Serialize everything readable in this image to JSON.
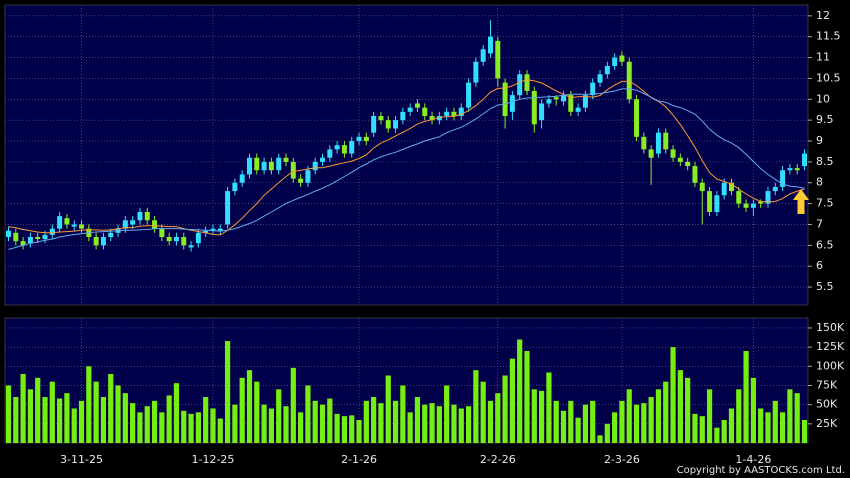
{
  "chart_data": [
    {
      "type": "candlestick",
      "up_color": "#33ddff",
      "down_color": "#88ee22",
      "ylim": [
        5.07,
        12.26
      ],
      "yticks": [
        5.5,
        6,
        6.5,
        7,
        7.5,
        8,
        8.5,
        9,
        9.5,
        10,
        10.5,
        11,
        11.5,
        12
      ],
      "grid": true,
      "open": [
        6.7,
        6.8,
        6.6,
        6.55,
        6.7,
        6.65,
        6.75,
        6.9,
        7.15,
        6.95,
        7.0,
        6.9,
        6.7,
        6.5,
        6.7,
        6.8,
        6.9,
        7.0,
        7.1,
        7.3,
        7.1,
        6.9,
        6.7,
        6.6,
        6.7,
        6.45,
        6.55,
        6.8,
        6.85,
        6.85,
        7.0,
        7.8,
        8.0,
        8.2,
        8.6,
        8.3,
        8.5,
        8.3,
        8.6,
        8.5,
        8.1,
        8.0,
        8.3,
        8.5,
        8.6,
        8.8,
        8.9,
        8.7,
        9.0,
        9.1,
        9.2,
        9.6,
        9.5,
        9.3,
        9.5,
        9.7,
        9.9,
        9.8,
        9.6,
        9.5,
        9.6,
        9.7,
        9.6,
        9.8,
        10.4,
        10.9,
        11.1,
        11.4,
        10.4,
        9.7,
        10.1,
        10.6,
        10.2,
        9.5,
        9.9,
        10.05,
        9.95,
        10.1,
        9.7,
        9.8,
        10.1,
        10.4,
        10.6,
        10.8,
        11.05,
        10.9,
        10.0,
        9.1,
        8.8,
        8.7,
        9.2,
        8.8,
        8.6,
        8.5,
        8.4,
        8.0,
        7.8,
        7.3,
        7.7,
        8.0,
        7.8,
        7.5,
        7.4,
        7.55,
        7.5,
        7.8,
        7.9,
        8.3,
        8.35,
        8.4
      ],
      "high": [
        6.95,
        6.9,
        6.7,
        6.8,
        6.8,
        6.85,
        7.0,
        7.3,
        7.25,
        7.1,
        7.1,
        7.0,
        6.8,
        6.8,
        6.9,
        7.0,
        7.2,
        7.2,
        7.4,
        7.4,
        7.2,
        7.0,
        6.8,
        6.8,
        6.8,
        6.6,
        6.9,
        6.95,
        7.0,
        7.0,
        7.9,
        8.1,
        8.3,
        8.7,
        8.7,
        8.6,
        8.6,
        8.7,
        8.7,
        8.6,
        8.2,
        8.4,
        8.6,
        8.7,
        8.9,
        9.0,
        9.0,
        9.1,
        9.2,
        9.2,
        9.7,
        9.7,
        9.6,
        9.6,
        9.8,
        9.9,
        10.0,
        9.9,
        9.7,
        9.7,
        9.8,
        9.8,
        9.9,
        10.5,
        11.0,
        11.3,
        11.9,
        11.5,
        10.5,
        10.2,
        10.7,
        10.7,
        10.3,
        10.0,
        10.1,
        10.1,
        10.2,
        10.2,
        9.9,
        10.2,
        10.5,
        10.7,
        10.9,
        11.1,
        11.15,
        11.0,
        10.1,
        9.2,
        8.9,
        9.3,
        9.3,
        8.9,
        8.7,
        8.6,
        8.5,
        8.1,
        7.9,
        7.8,
        8.1,
        8.1,
        7.9,
        7.6,
        7.6,
        7.6,
        7.9,
        8.0,
        8.4,
        8.45,
        8.45,
        8.8
      ],
      "low": [
        6.6,
        6.5,
        6.4,
        6.45,
        6.55,
        6.55,
        6.65,
        6.8,
        6.9,
        6.85,
        6.8,
        6.6,
        6.4,
        6.4,
        6.6,
        6.7,
        6.8,
        6.9,
        7.0,
        7.0,
        6.8,
        6.6,
        6.5,
        6.5,
        6.4,
        6.35,
        6.45,
        6.7,
        6.75,
        6.75,
        6.9,
        7.7,
        7.9,
        8.1,
        8.2,
        8.2,
        8.2,
        8.2,
        8.4,
        8.0,
        7.9,
        7.9,
        8.2,
        8.4,
        8.5,
        8.7,
        8.6,
        8.6,
        8.9,
        8.9,
        9.1,
        9.4,
        9.2,
        9.2,
        9.4,
        9.6,
        9.7,
        9.5,
        9.4,
        9.4,
        9.5,
        9.5,
        9.5,
        9.7,
        10.3,
        10.8,
        11.0,
        10.3,
        9.3,
        9.5,
        10.0,
        10.1,
        9.2,
        9.3,
        9.8,
        9.85,
        9.85,
        9.6,
        9.6,
        9.7,
        10.0,
        10.3,
        10.5,
        10.7,
        10.8,
        9.9,
        9.0,
        8.7,
        7.95,
        8.6,
        8.7,
        8.5,
        8.4,
        8.3,
        7.9,
        7.0,
        7.2,
        7.2,
        7.6,
        7.7,
        7.4,
        7.3,
        7.2,
        7.4,
        7.4,
        7.7,
        7.8,
        8.2,
        8.2,
        8.3
      ],
      "close": [
        6.85,
        6.6,
        6.5,
        6.7,
        6.65,
        6.75,
        6.9,
        7.2,
        7.0,
        7.0,
        6.9,
        6.7,
        6.5,
        6.7,
        6.8,
        6.9,
        7.1,
        7.1,
        7.3,
        7.1,
        6.9,
        6.7,
        6.6,
        6.7,
        6.5,
        6.5,
        6.8,
        6.85,
        6.9,
        6.9,
        7.8,
        8.0,
        8.2,
        8.6,
        8.3,
        8.5,
        8.3,
        8.6,
        8.5,
        8.1,
        8.0,
        8.3,
        8.5,
        8.6,
        8.8,
        8.9,
        8.7,
        9.0,
        9.1,
        9.0,
        9.6,
        9.5,
        9.3,
        9.5,
        9.7,
        9.8,
        9.8,
        9.6,
        9.5,
        9.6,
        9.7,
        9.6,
        9.8,
        10.4,
        10.9,
        11.2,
        11.5,
        10.5,
        9.6,
        10.1,
        10.6,
        10.2,
        9.4,
        9.9,
        10.0,
        10.0,
        10.1,
        9.7,
        9.8,
        10.1,
        10.4,
        10.6,
        10.8,
        11.0,
        10.9,
        10.0,
        9.1,
        8.8,
        8.6,
        9.2,
        8.8,
        8.6,
        8.5,
        8.4,
        8.0,
        7.8,
        7.3,
        7.7,
        8.0,
        7.8,
        7.5,
        7.4,
        7.5,
        7.5,
        7.8,
        7.9,
        8.3,
        8.35,
        8.3,
        8.7
      ],
      "series": [
        {
          "color": "#ff9933",
          "values": [
            6.95,
            6.92,
            6.88,
            6.85,
            6.82,
            6.8,
            6.8,
            6.82,
            6.83,
            6.84,
            6.86,
            6.87,
            6.87,
            6.86,
            6.87,
            6.9,
            6.92,
            6.92,
            6.96,
            6.97,
            6.97,
            6.96,
            6.95,
            6.95,
            6.9,
            6.86,
            6.83,
            6.8,
            6.76,
            6.75,
            6.86,
            6.99,
            7.15,
            7.33,
            7.5,
            7.7,
            7.85,
            8.0,
            8.15,
            8.27,
            8.3,
            8.33,
            8.36,
            8.36,
            8.4,
            8.44,
            8.48,
            8.52,
            8.58,
            8.67,
            8.83,
            8.95,
            9.03,
            9.12,
            9.21,
            9.3,
            9.41,
            9.47,
            9.51,
            9.57,
            9.58,
            9.59,
            9.64,
            9.73,
            9.85,
            10.0,
            10.17,
            10.26,
            10.27,
            10.32,
            10.41,
            10.47,
            10.44,
            10.39,
            10.3,
            10.2,
            10.12,
            10.04,
            10.06,
            10.07,
            10.05,
            10.09,
            10.23,
            10.34,
            10.43,
            10.43,
            10.33,
            10.19,
            10.04,
            9.95,
            9.82,
            9.62,
            9.39,
            9.13,
            8.85,
            8.53,
            8.24,
            8.09,
            8.03,
            7.97,
            7.85,
            7.73,
            7.63,
            7.55,
            7.54,
            7.55,
            7.62,
            7.73,
            7.8,
            7.85
          ]
        },
        {
          "color": "#66aaee",
          "values": [
            6.4,
            6.45,
            6.5,
            6.55,
            6.58,
            6.62,
            6.65,
            6.7,
            6.73,
            6.76,
            6.78,
            6.8,
            6.82,
            6.83,
            6.84,
            6.85,
            6.86,
            6.86,
            6.87,
            6.88,
            6.9,
            6.9,
            6.9,
            6.9,
            6.89,
            6.88,
            6.87,
            6.86,
            6.85,
            6.84,
            6.86,
            6.9,
            6.96,
            7.02,
            7.1,
            7.2,
            7.3,
            7.4,
            7.5,
            7.58,
            7.65,
            7.72,
            7.8,
            7.87,
            7.95,
            8.05,
            8.15,
            8.25,
            8.36,
            8.45,
            8.55,
            8.62,
            8.68,
            8.73,
            8.8,
            8.87,
            8.93,
            9.0,
            9.05,
            9.1,
            9.2,
            9.27,
            9.33,
            9.42,
            9.53,
            9.65,
            9.78,
            9.86,
            9.89,
            9.94,
            10.0,
            10.03,
            10.04,
            10.05,
            10.06,
            10.07,
            10.1,
            10.12,
            10.12,
            10.12,
            10.12,
            10.14,
            10.17,
            10.2,
            10.25,
            10.25,
            10.22,
            10.14,
            10.05,
            9.96,
            9.93,
            9.85,
            9.8,
            9.73,
            9.64,
            9.48,
            9.28,
            9.14,
            9.03,
            8.95,
            8.84,
            8.68,
            8.51,
            8.34,
            8.2,
            8.08,
            7.97,
            7.92,
            7.9,
            7.87
          ]
        }
      ]
    },
    {
      "type": "bar",
      "color": "#77ee11",
      "ylim": [
        0,
        163000
      ],
      "yticks": [
        {
          "value": 25000,
          "label": "25K"
        },
        {
          "value": 50000,
          "label": "50K"
        },
        {
          "value": 75000,
          "label": "75K"
        },
        {
          "value": 100000,
          "label": "100K"
        },
        {
          "value": 125000,
          "label": "125K"
        },
        {
          "value": 150000,
          "label": "150K"
        }
      ],
      "grid": true,
      "categories": [
        null,
        null,
        null,
        null,
        null,
        null,
        null,
        null,
        null,
        null,
        "3-11-25",
        null,
        null,
        null,
        null,
        null,
        null,
        null,
        null,
        null,
        null,
        null,
        null,
        null,
        null,
        null,
        null,
        null,
        "1-12-25",
        null,
        null,
        null,
        null,
        null,
        null,
        null,
        null,
        null,
        null,
        null,
        null,
        null,
        null,
        null,
        null,
        null,
        null,
        null,
        "2-1-26",
        null,
        null,
        null,
        null,
        null,
        null,
        null,
        null,
        null,
        null,
        null,
        null,
        null,
        null,
        null,
        null,
        null,
        null,
        "2-2-26",
        null,
        null,
        null,
        null,
        null,
        null,
        null,
        null,
        null,
        null,
        null,
        null,
        null,
        null,
        null,
        null,
        "2-3-26",
        null,
        null,
        null,
        null,
        null,
        null,
        null,
        null,
        null,
        null,
        null,
        null,
        null,
        null,
        null,
        null,
        null,
        "1-4-26",
        null,
        null,
        null,
        null,
        null,
        null,
        null
      ],
      "values": [
        75000,
        60000,
        90000,
        70000,
        85000,
        60000,
        80000,
        58000,
        65000,
        45000,
        55000,
        100000,
        80000,
        60000,
        90000,
        75000,
        65000,
        52000,
        40000,
        48000,
        55000,
        40000,
        62000,
        78000,
        42000,
        38000,
        40000,
        60000,
        45000,
        32000,
        133000,
        50000,
        85000,
        95000,
        80000,
        50000,
        45000,
        70000,
        48000,
        98000,
        40000,
        75000,
        55000,
        50000,
        58000,
        38000,
        35000,
        36000,
        30000,
        55000,
        60000,
        52000,
        88000,
        55000,
        75000,
        40000,
        60000,
        50000,
        52000,
        48000,
        75000,
        50000,
        45000,
        48000,
        95000,
        80000,
        55000,
        65000,
        88000,
        110000,
        135000,
        120000,
        70000,
        68000,
        92000,
        55000,
        42000,
        55000,
        33000,
        50000,
        55000,
        10000,
        25000,
        40000,
        55000,
        70000,
        50000,
        52000,
        60000,
        70000,
        80000,
        125000,
        95000,
        85000,
        38000,
        35000,
        70000,
        20000,
        30000,
        45000,
        70000,
        120000,
        85000,
        45000,
        40000,
        55000,
        40000,
        70000,
        65000,
        30000
      ]
    }
  ],
  "footer": "Copyright by AASTOCKS.com Ltd."
}
